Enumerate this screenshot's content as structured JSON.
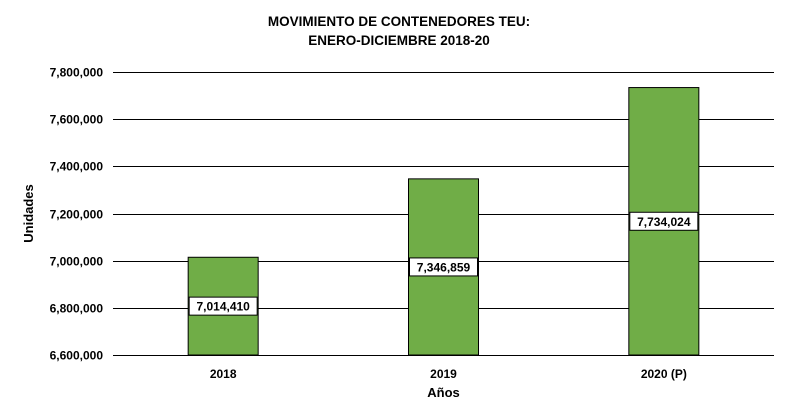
{
  "chart_data": {
    "type": "bar",
    "title": "MOVIMIENTO DE CONTENEDORES TEU:",
    "subtitle": "ENERO-DICIEMBRE 2018-20",
    "xlabel": "Años",
    "ylabel": "Unidades",
    "categories": [
      "2018",
      "2019",
      "2020 (P)"
    ],
    "values": [
      7014410,
      7346859,
      7734024
    ],
    "value_labels": [
      "7,014,410",
      "7,346,859",
      "7,734,024"
    ],
    "ylim": [
      6600000,
      7800000
    ],
    "yticks": [
      6600000,
      6800000,
      7000000,
      7200000,
      7400000,
      7600000,
      7800000
    ],
    "ytick_labels": [
      "6,600,000",
      "6,800,000",
      "7,000,000",
      "7,200,000",
      "7,400,000",
      "7,600,000",
      "7,800,000"
    ],
    "grid": true,
    "legend": "none",
    "bar_color": "#70AD47"
  }
}
